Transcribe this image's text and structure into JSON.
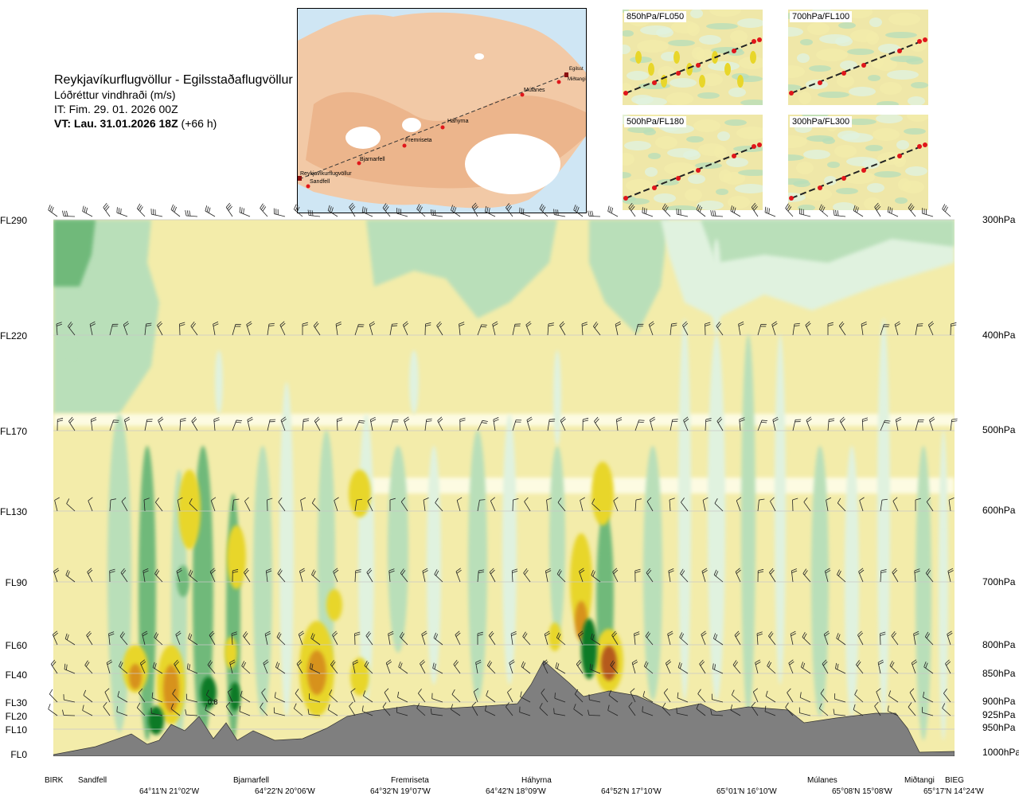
{
  "title": {
    "route": "Reykjavíkurflugvöllur - Egilsstaðaflugvöllur",
    "variable": "Lóðréttur vindhraði (m/s)",
    "issue_time": "IT: Fim. 29. 01. 2026 00Z",
    "valid_time_label": "VT: Lau. 31.01.2026 18Z",
    "valid_time_offset": "(+66 h)"
  },
  "map": {
    "points": [
      "Reykjavíkurflugvöllur",
      "Sandfell",
      "Bjarnarfell",
      "Fremriseta",
      "Háhyrna",
      "Múlanes",
      "Miðtangi",
      "Egilsst"
    ]
  },
  "mini_maps": [
    {
      "label": "850hPa/FL050"
    },
    {
      "label": "700hPa/FL100"
    },
    {
      "label": "500hPa/FL180"
    },
    {
      "label": "300hPa/FL300"
    }
  ],
  "chart_data": {
    "type": "heatmap",
    "title": "Lóðréttur vindhraði (m/s)",
    "colors": {
      "strong_down": "#0f7a25",
      "mod_down": "#6fb97a",
      "weak_down": "#b9dfb9",
      "very_weak_down": "#e0f2df",
      "neutral": "#fdfbe2",
      "weak_up": "#f3ecaa",
      "mod_up": "#e8d62a",
      "strong_up": "#d7921f",
      "very_strong_up": "#b55a1a",
      "terrain": "#7f7f7f"
    },
    "y_left_labels": [
      "FL290",
      "FL220",
      "FL170",
      "FL130",
      "FL90",
      "FL60",
      "FL40",
      "FL30",
      "FL20",
      "FL10",
      "FL0"
    ],
    "y_right_labels": [
      "300hPa",
      "400hPa",
      "500hPa",
      "600hPa",
      "700hPa",
      "800hPa",
      "850hPa",
      "900hPa",
      "925hPa",
      "950hPa",
      "1000hPa"
    ],
    "x_point_labels": [
      "BIRK",
      "Sandfell",
      "Bjarnarfell",
      "Fremriseta",
      "Háhyrna",
      "Múlanes",
      "Miðtangi",
      "BIEG"
    ],
    "x_coord_labels": [
      "64°11'N 21°02'W",
      "64°22'N 20°06'W",
      "64°32'N 19°07'W",
      "64°42'N 18°09'W",
      "64°52'N 17°10'W",
      "65°01'N 16°10'W",
      "65°08'N 15°08'W",
      "65°17'N 14°24'W"
    ],
    "annotations": [
      "0.8"
    ]
  }
}
